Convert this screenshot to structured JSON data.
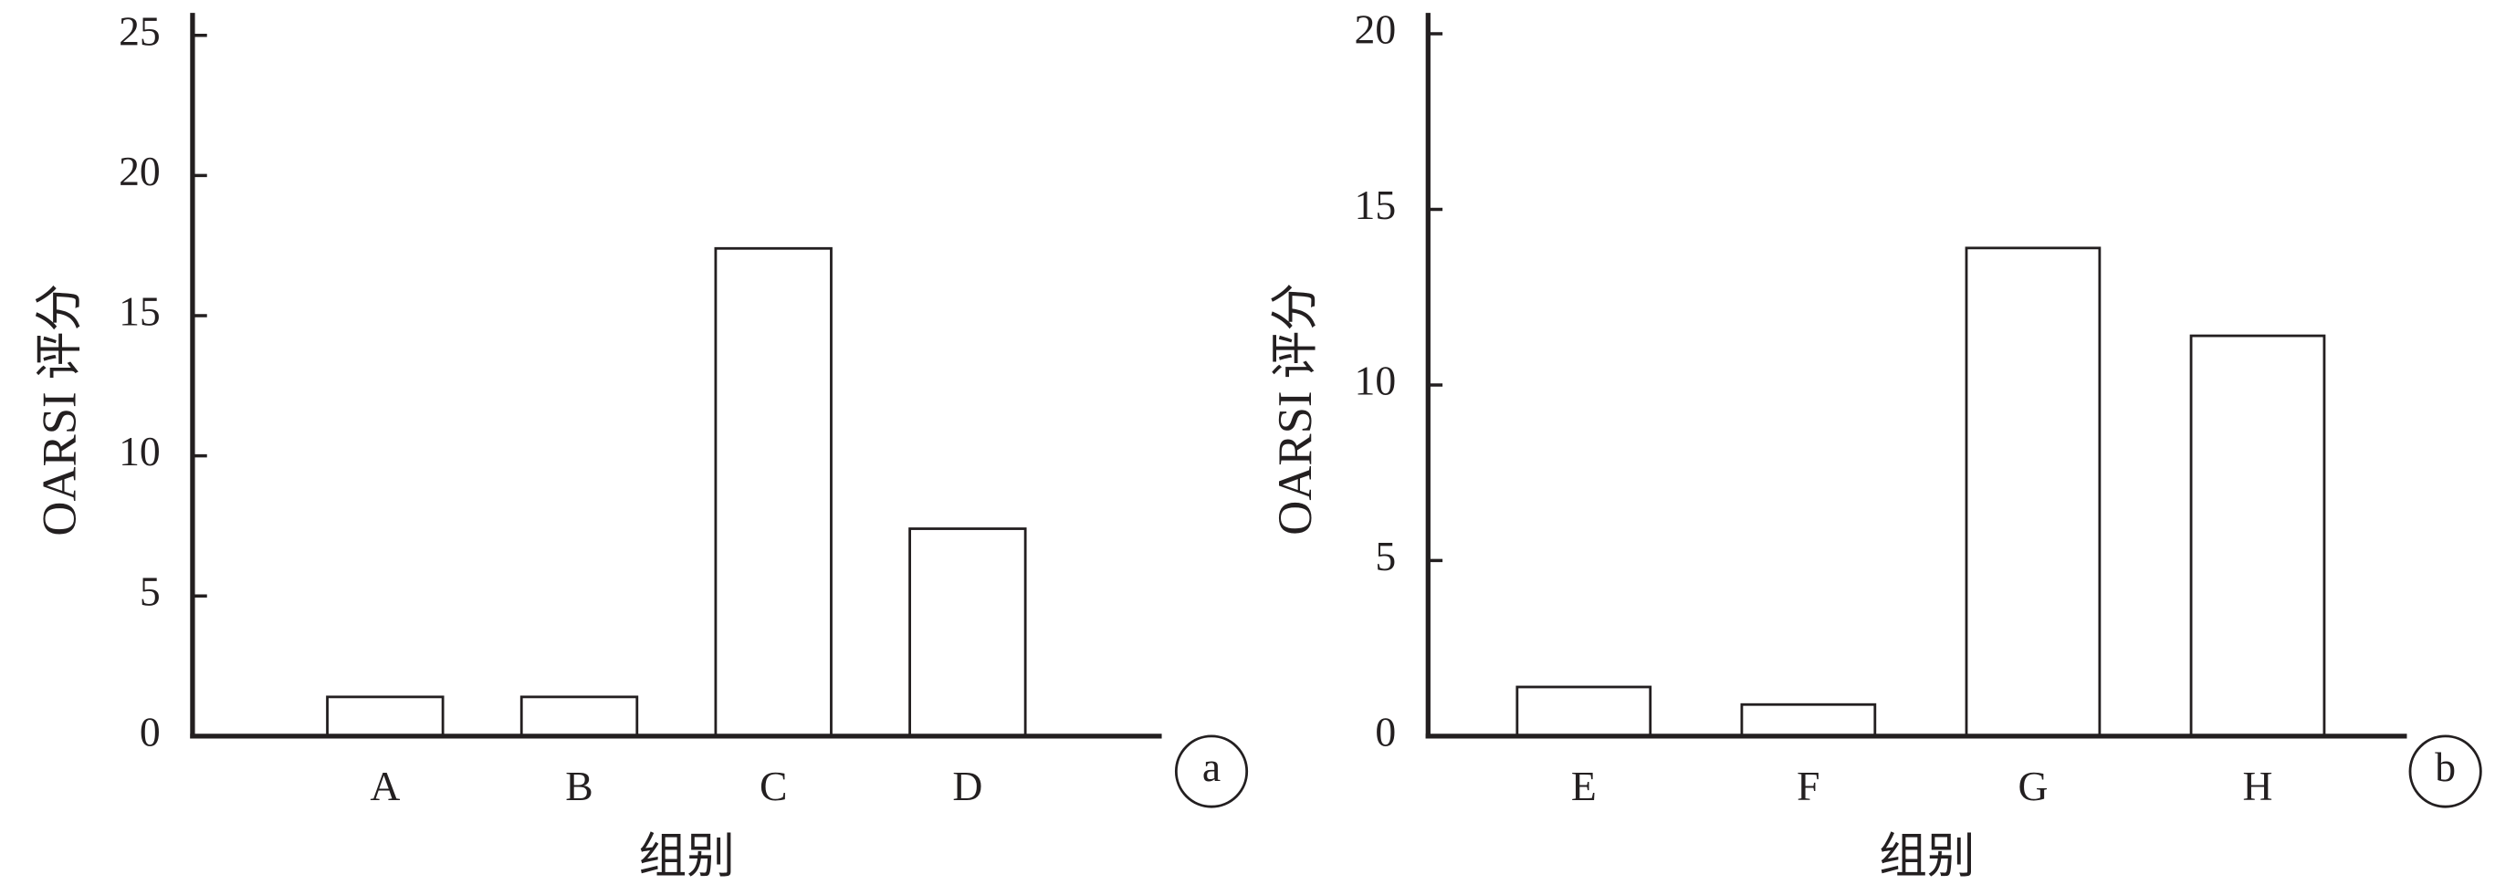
{
  "chart_data": [
    {
      "type": "bar",
      "panel_label": "a",
      "y_label": "OARSI 评分",
      "x_label": "组别",
      "categories": [
        "A",
        "B",
        "C",
        "D"
      ],
      "values": [
        1.4,
        1.4,
        17.4,
        7.4
      ],
      "color": "#ffffff",
      "ylim": [
        0,
        25
      ],
      "yticks": [
        0,
        5,
        10,
        15,
        20,
        25
      ]
    },
    {
      "type": "bar",
      "panel_label": "b",
      "y_label": "OARSI 评分",
      "x_label": "组别",
      "categories": [
        "E",
        "F",
        "G",
        "H"
      ],
      "values": [
        1.4,
        0.9,
        13.9,
        11.4
      ],
      "color": "#ffffff",
      "ylim": [
        0,
        20
      ],
      "yticks": [
        0,
        5,
        10,
        15,
        20
      ]
    }
  ]
}
